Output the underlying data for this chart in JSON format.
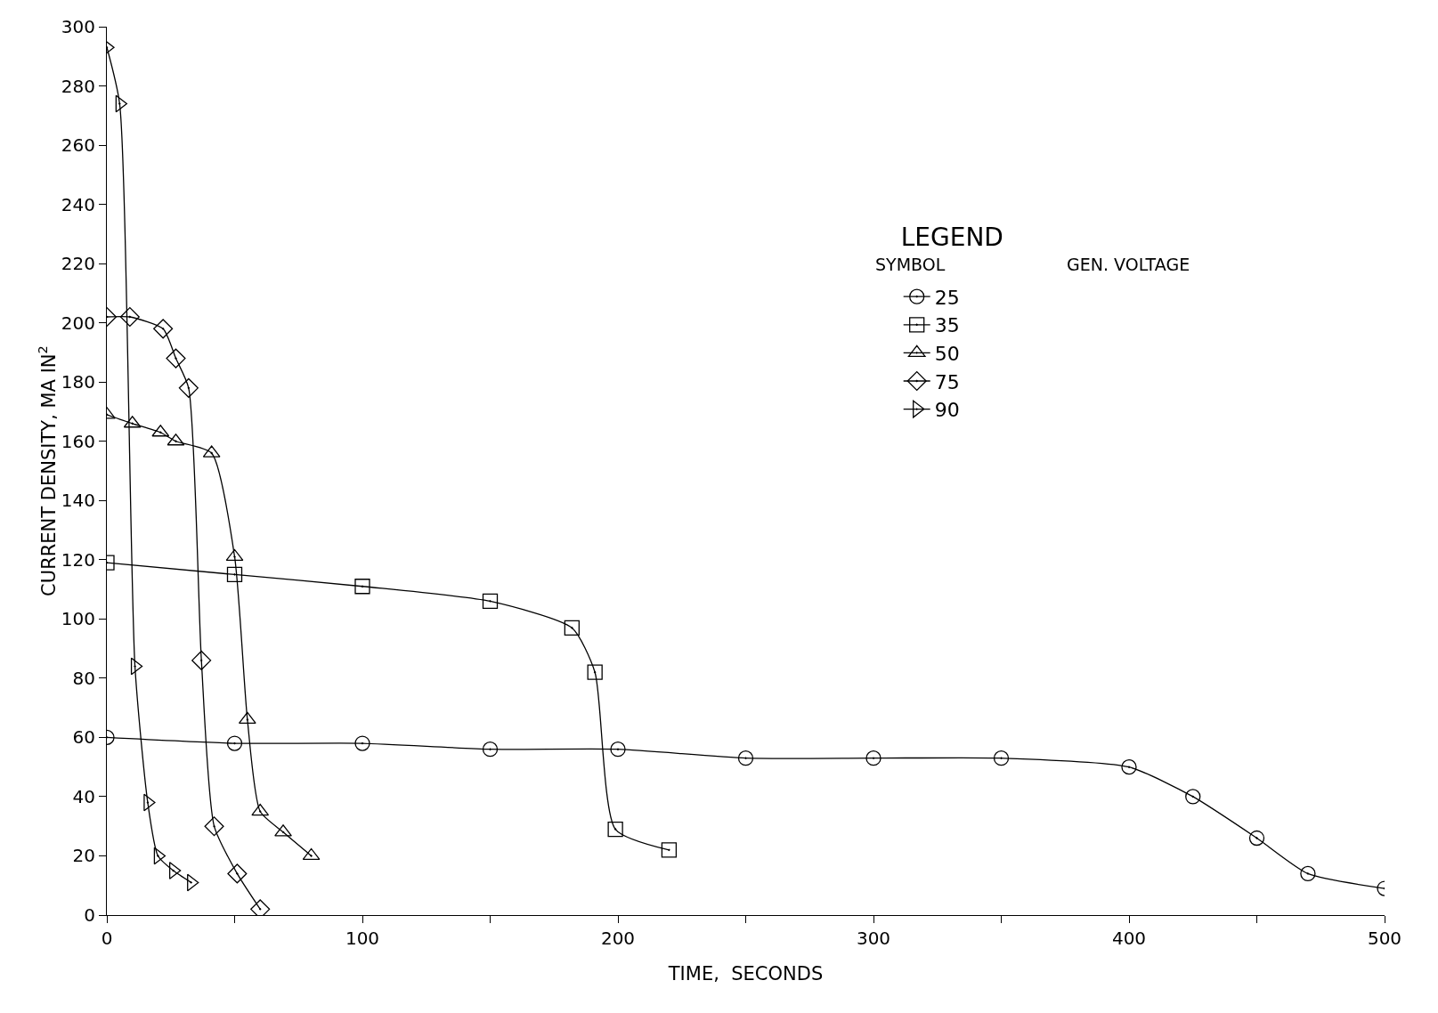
{
  "chart_data": {
    "type": "line",
    "xlabel": "TIME,  SECONDS",
    "ylabel": "CURRENT DENSITY, MA IN$^{2}$",
    "legend_title": "LEGEND",
    "annotations": [
      "SYMBOL",
      "GEN. VOLTAGE"
    ],
    "legend": "top right",
    "line_style": "solid",
    "xlim": [
      0,
      500
    ],
    "ylim": [
      0,
      300
    ],
    "xticks": [
      0,
      {
        "value": 50,
        "label": null
      },
      100,
      {
        "value": 150,
        "label": null
      },
      200,
      {
        "value": 250,
        "label": null
      },
      300,
      {
        "value": 350,
        "label": null
      },
      400,
      {
        "value": 450,
        "label": null
      },
      500
    ],
    "yticks": [
      0,
      20,
      40,
      60,
      80,
      100,
      120,
      140,
      160,
      180,
      200,
      220,
      240,
      260,
      280,
      300
    ],
    "series": [
      {
        "name": "25",
        "color": "#000000",
        "marker": "circle",
        "x": [
          0,
          50,
          100,
          150,
          200,
          250,
          300,
          350,
          400,
          425,
          450,
          470,
          500
        ],
        "values": [
          60,
          58,
          58,
          56,
          56,
          53,
          53,
          53,
          50,
          40,
          26,
          14,
          9
        ]
      },
      {
        "name": "35",
        "color": "#000000",
        "marker": "square",
        "x": [
          0,
          50,
          100,
          150,
          182,
          191,
          199,
          220
        ],
        "values": [
          119,
          115,
          111,
          106,
          97,
          82,
          29,
          22
        ]
      },
      {
        "name": "50",
        "color": "#000000",
        "marker": "triangle",
        "x": [
          0,
          10,
          21,
          27,
          41,
          50,
          55,
          60,
          69,
          80
        ],
        "values": [
          169,
          166,
          163,
          160,
          156,
          121,
          66,
          35,
          28,
          20
        ]
      },
      {
        "name": "75",
        "color": "#000000",
        "marker": "diamond",
        "x": [
          0,
          9,
          22,
          27,
          32,
          37,
          42,
          51,
          60
        ],
        "values": [
          202,
          202,
          198,
          188,
          178,
          86,
          30,
          14,
          2
        ]
      },
      {
        "name": "90",
        "color": "#000000",
        "marker": "semicircle",
        "x": [
          0,
          5,
          11,
          16,
          20,
          26,
          33
        ],
        "values": [
          293,
          274,
          84,
          38,
          20,
          15,
          11
        ]
      }
    ]
  }
}
